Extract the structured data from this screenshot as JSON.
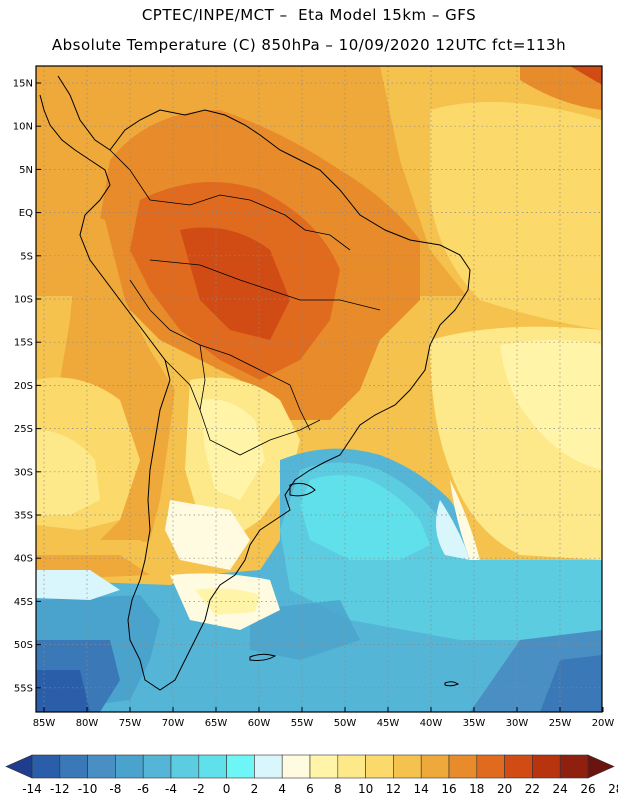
{
  "header": {
    "title_line1": "CPTEC/INPE/MCT –  Eta Model 15km – GFS",
    "title_line2": "Absolute Temperature (C) 850hPa – 10/09/2020 12UTC fct=113h"
  },
  "map": {
    "lat_labels": [
      "15N",
      "10N",
      "5N",
      "EQ",
      "5S",
      "10S",
      "15S",
      "20S",
      "25S",
      "30S",
      "35S",
      "40S",
      "45S",
      "50S",
      "55S"
    ],
    "lon_labels": [
      "85W",
      "80W",
      "75W",
      "70W",
      "65W",
      "60W",
      "55W",
      "50W",
      "45W",
      "40W",
      "35W",
      "30W",
      "25W",
      "20W"
    ]
  },
  "colorbar": {
    "labels": [
      "-14",
      "-12",
      "-10",
      "-8",
      "-6",
      "-4",
      "-2",
      "0",
      "2",
      "4",
      "6",
      "8",
      "10",
      "12",
      "14",
      "16",
      "18",
      "20",
      "22",
      "24",
      "26",
      "28"
    ],
    "colors": [
      "#1f3d8c",
      "#2a5ea8",
      "#3a78b8",
      "#4a8fc4",
      "#4aa3cc",
      "#55b5d6",
      "#5ccce0",
      "#5fe0ea",
      "#6ef5f5",
      "#d8f6fb",
      "#fffbe0",
      "#fff4a8",
      "#fde98a",
      "#fbd96a",
      "#f5c24e",
      "#efa93a",
      "#e88b2a",
      "#e06a1e",
      "#d04c14",
      "#b8340e",
      "#8f2010",
      "#6a1410"
    ]
  }
}
